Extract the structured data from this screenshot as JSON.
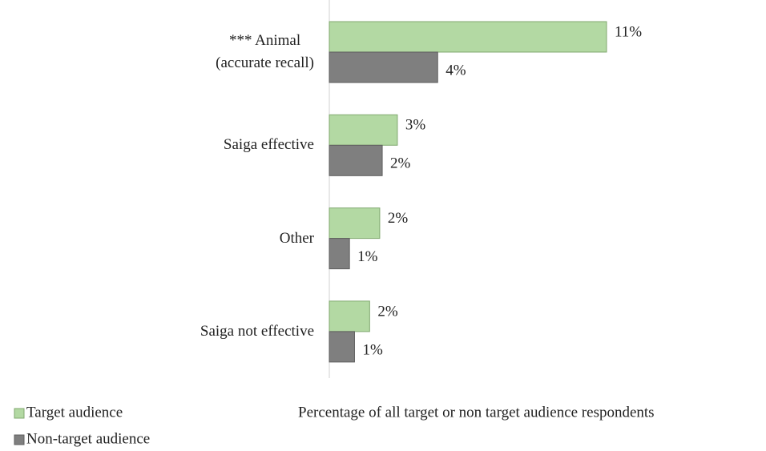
{
  "chart_data": {
    "type": "hbar",
    "categories": [
      "*** Animal\n(accurate recall)",
      "Saiga effective",
      "Other",
      "Saiga not effective"
    ],
    "series": [
      {
        "name": "Target audience",
        "color": "#b3d9a3",
        "stroke": "#80a86f",
        "values": [
          11,
          2.7,
          2.0,
          1.6
        ],
        "value_labels": [
          "11%",
          "3%",
          "2%",
          "2%"
        ]
      },
      {
        "name": "Non-target audience",
        "color": "#7f7f7f",
        "stroke": "#5e5e5e",
        "values": [
          4.3,
          2.1,
          0.8,
          1.0
        ],
        "value_labels": [
          "4%",
          "2%",
          "1%",
          "1%"
        ]
      }
    ],
    "xlim": [
      0,
      11
    ],
    "xlabel": "Percentage of all target or non target audience respondents",
    "legend": "bottom-left"
  }
}
